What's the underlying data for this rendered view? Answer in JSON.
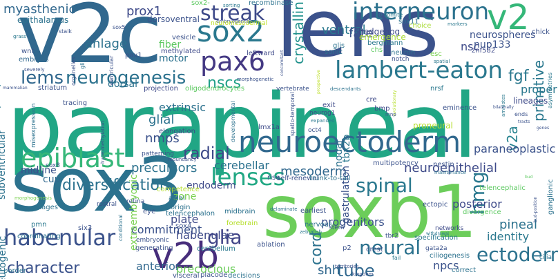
{
  "words": [
    {
      "text": "parapineal",
      "color": "#21a685",
      "vertical": false
    },
    {
      "text": "sox3",
      "color": "#2c728e",
      "vertical": false
    },
    {
      "text": "soxb1",
      "color": "#6ccd5a",
      "vertical": false
    },
    {
      "text": "v2c",
      "color": "#31688e",
      "vertical": false
    },
    {
      "text": "lens",
      "color": "#3b528b",
      "vertical": false
    },
    {
      "text": "neuroectoderm",
      "color": "#31688e",
      "vertical": false
    },
    {
      "text": "pax6",
      "color": "#443983",
      "vertical": false
    },
    {
      "text": "sox2",
      "color": "#2a788e",
      "vertical": false
    },
    {
      "text": "v2",
      "color": "#35b779",
      "vertical": false
    },
    {
      "text": "interneuron",
      "color": "#2c728e",
      "vertical": false
    },
    {
      "text": "epiblast",
      "color": "#35b779",
      "vertical": false
    },
    {
      "text": "lenses",
      "color": "#22a884",
      "vertical": false
    },
    {
      "text": "lambert-eaton",
      "color": "#2a788e",
      "vertical": false
    },
    {
      "text": "streak",
      "color": "#3e4a89",
      "vertical": false
    },
    {
      "text": "v2b",
      "color": "#472d7b",
      "vertical": false
    },
    {
      "text": "habenular",
      "color": "#3b528b",
      "vertical": false
    },
    {
      "text": "neurogenesis",
      "color": "#2c728e",
      "vertical": false
    },
    {
      "text": "lems",
      "color": "#31688e",
      "vertical": false
    },
    {
      "text": "glia",
      "color": "#414487",
      "vertical": false
    },
    {
      "text": "spinal",
      "color": "#2a788e",
      "vertical": false
    },
    {
      "text": "ectoderm",
      "color": "#2c728e",
      "vertical": false
    },
    {
      "text": "hmg",
      "color": "#2a788e",
      "vertical": true
    },
    {
      "text": "neural",
      "color": "#2c728e",
      "vertical": false
    },
    {
      "text": "nscs",
      "color": "#1fa088",
      "vertical": false
    },
    {
      "text": "radial",
      "color": "#3e4a89",
      "vertical": false
    },
    {
      "text": "character",
      "color": "#3b528b",
      "vertical": false
    },
    {
      "text": "diversification",
      "color": "#2c728e",
      "vertical": false
    },
    {
      "text": "cord",
      "color": "#2c728e",
      "vertical": true
    },
    {
      "text": "tube",
      "color": "#31688e",
      "vertical": false
    },
    {
      "text": "fgf",
      "color": "#2a788e",
      "vertical": false
    },
    {
      "text": "crystallin",
      "color": "#21918c",
      "vertical": true
    },
    {
      "text": "primitive",
      "color": "#2a788e",
      "vertical": true
    },
    {
      "text": "v2a",
      "color": "#26828e",
      "vertical": true
    },
    {
      "text": "myasthenic",
      "color": "#31688e",
      "vertical": false
    },
    {
      "text": "ventral",
      "color": "#2a788e",
      "vertical": false
    },
    {
      "text": "prox1",
      "color": "#3e4a89",
      "vertical": false
    },
    {
      "text": "fate",
      "color": "#3b528b",
      "vertical": false
    },
    {
      "text": "anlage",
      "color": "#2c728e",
      "vertical": false
    },
    {
      "text": "mesoderm",
      "color": "#31688e",
      "vertical": false
    },
    {
      "text": "nmps",
      "color": "#3b528b",
      "vertical": false
    },
    {
      "text": "neuroepithelial",
      "color": "#3e4a89",
      "vertical": false
    },
    {
      "text": "paraneoplastic",
      "color": "#3b528b",
      "vertical": false
    },
    {
      "text": "pineal",
      "color": "#2c728e",
      "vertical": false
    },
    {
      "text": "identity",
      "color": "#2a788e",
      "vertical": false
    },
    {
      "text": "shh",
      "color": "#31688e",
      "vertical": false
    },
    {
      "text": "precursors",
      "color": "#2c728e",
      "vertical": false
    },
    {
      "text": "cerebellar",
      "color": "#2c728e",
      "vertical": false
    },
    {
      "text": "glial",
      "color": "#2c728e",
      "vertical": false
    },
    {
      "text": "extrinsic",
      "color": "#2c728e",
      "vertical": false
    },
    {
      "text": "habenulae",
      "color": "#3e4a89",
      "vertical": false
    },
    {
      "text": "commitment",
      "color": "#3b528b",
      "vertical": false
    },
    {
      "text": "plate",
      "color": "#3e4a89",
      "vertical": false
    },
    {
      "text": "progenitors",
      "color": "#3b528b",
      "vertical": false
    },
    {
      "text": "posterior",
      "color": "#3e4a89",
      "vertical": false
    },
    {
      "text": "proper",
      "color": "#2a788e",
      "vertical": false
    },
    {
      "text": "nsc",
      "color": "#3e4a89",
      "vertical": false
    },
    {
      "text": "neurospheres",
      "color": "#3b528b",
      "vertical": false
    },
    {
      "text": "nup133",
      "color": "#3b528b",
      "vertical": false
    },
    {
      "text": "pluripotent",
      "color": "#2a788e",
      "vertical": true
    },
    {
      "text": "epithalamus",
      "color": "#2c728e",
      "vertical": false
    },
    {
      "text": "precocious",
      "color": "#6ccd5a",
      "vertical": false
    },
    {
      "text": "npcs",
      "color": "#3b528b",
      "vertical": false
    },
    {
      "text": "anterior",
      "color": "#31688e",
      "vertical": false
    },
    {
      "text": "endoderm",
      "color": "#3e4a89",
      "vertical": false
    },
    {
      "text": "midline",
      "color": "#3b528b",
      "vertical": false
    },
    {
      "text": "subventricular",
      "color": "#2c728e",
      "vertical": true
    },
    {
      "text": "neurogenic",
      "color": "#2c728e",
      "vertical": true
    },
    {
      "text": "gastrulation",
      "color": "#3b528b",
      "vertical": true
    },
    {
      "text": "tbx2b",
      "color": "#2a788e",
      "vertical": true
    },
    {
      "text": "nodal",
      "color": "#2c728e",
      "vertical": true
    },
    {
      "text": "dorsoventral",
      "color": "#3b528b",
      "vertical": false
    },
    {
      "text": "fiber",
      "color": "#5ec962",
      "vertical": false
    },
    {
      "text": "motor",
      "color": "#2c728e",
      "vertical": false
    },
    {
      "text": "zone",
      "color": "#7ad151",
      "vertical": false
    },
    {
      "text": "cup",
      "color": "#31688e",
      "vertical": false
    },
    {
      "text": "dorsal",
      "color": "#2c728e",
      "vertical": false
    },
    {
      "text": "extraembryonic",
      "color": "#7ad151",
      "vertical": true
    },
    {
      "text": "lineages",
      "color": "#3e4a89",
      "vertical": false
    },
    {
      "text": "elongation",
      "color": "#3e4a89",
      "vertical": false
    },
    {
      "text": "sox2-",
      "color": "#5ec962",
      "vertical": false
    },
    {
      "text": "recombinase",
      "color": "#2c728e",
      "vertical": false
    },
    {
      "text": "embryogenesis",
      "color": "#3b528b",
      "vertical": false
    },
    {
      "text": "neuromesodermal",
      "color": "#bddf26",
      "vertical": false
    },
    {
      "text": "sox11",
      "color": "#2c728e",
      "vertical": false
    },
    {
      "text": "sorting",
      "color": "#2a788e",
      "vertical": false
    },
    {
      "text": "10-somite",
      "color": "#2a788e",
      "vertical": false
    },
    {
      "text": "choice",
      "color": "#a8db34",
      "vertical": false
    },
    {
      "text": "layer",
      "color": "#3b528b",
      "vertical": false
    },
    {
      "text": "hedgehog",
      "color": "#3e4a89",
      "vertical": false
    },
    {
      "text": "emergence",
      "color": "#a8db34",
      "vertical": false
    },
    {
      "text": "bergmann",
      "color": "#2a788e",
      "vertical": false
    },
    {
      "text": "markers",
      "color": "#2a788e",
      "vertical": false
    },
    {
      "text": "chick",
      "color": "#3b528b",
      "vertical": false
    },
    {
      "text": "stalk",
      "color": "#3b528b",
      "vertical": false
    },
    {
      "text": "sox5",
      "color": "#3b528b",
      "vertical": false
    },
    {
      "text": "vesicle",
      "color": "#3b528b",
      "vertical": false
    },
    {
      "text": "methylated",
      "color": "#3e4a89",
      "vertical": false
    },
    {
      "text": "leftward",
      "color": "#3e4a89",
      "vertical": false
    },
    {
      "text": "sonic",
      "color": "#2c728e",
      "vertical": false
    },
    {
      "text": "glis",
      "color": "#2c728e",
      "vertical": false
    },
    {
      "text": "neuron",
      "color": "#2c728e",
      "vertical": false
    },
    {
      "text": "notch",
      "color": "#3b528b",
      "vertical": false
    },
    {
      "text": "chs",
      "color": "#5ec962",
      "vertical": false
    },
    {
      "text": "esc",
      "color": "#7ad151",
      "vertical": false
    },
    {
      "text": "znf582",
      "color": "#3e4a89",
      "vertical": false
    },
    {
      "text": "spatial",
      "color": "#2a788e",
      "vertical": false
    },
    {
      "text": "wnt",
      "color": "#3b528b",
      "vertical": false
    },
    {
      "text": "embryos",
      "color": "#31688e",
      "vertical": false
    },
    {
      "text": "organelles",
      "color": "#3b528b",
      "vertical": true
    },
    {
      "text": "gli2",
      "color": "#2c728e",
      "vertical": true
    },
    {
      "text": "pax1",
      "color": "#3b528b",
      "vertical": false
    },
    {
      "text": "ventricular",
      "color": "#3b528b",
      "vertical": true
    },
    {
      "text": "severely",
      "color": "#3b528b",
      "vertical": false
    },
    {
      "text": "grass",
      "color": "#2a788e",
      "vertical": false
    },
    {
      "text": "mammalian",
      "color": "#3b528b",
      "vertical": false
    },
    {
      "text": "striatum",
      "color": "#3b528b",
      "vertical": false
    },
    {
      "text": "projection",
      "color": "#3e4a89",
      "vertical": false
    },
    {
      "text": "oligodendrocytes",
      "color": "#5ec962",
      "vertical": false
    },
    {
      "text": "morphogenetic",
      "color": "#3b528b",
      "vertical": false
    },
    {
      "text": "vertebrate",
      "color": "#3b528b",
      "vertical": false
    },
    {
      "text": "descendants",
      "color": "#2c728e",
      "vertical": false
    },
    {
      "text": "nrsf",
      "color": "#2a788e",
      "vertical": false
    },
    {
      "text": "cre",
      "color": "#3e4a89",
      "vertical": false
    },
    {
      "text": "bmp",
      "color": "#3e4a89",
      "vertical": false
    },
    {
      "text": "exit",
      "color": "#3e4a89",
      "vertical": false
    },
    {
      "text": "lmx1a",
      "color": "#3e4a89",
      "vertical": false
    },
    {
      "text": "oct4",
      "color": "#3b528b",
      "vertical": false
    },
    {
      "text": "neurog1",
      "color": "#3e4a89",
      "vertical": false
    },
    {
      "text": "eminence",
      "color": "#3b528b",
      "vertical": false
    },
    {
      "text": "proneural",
      "color": "#b5de2b",
      "vertical": false
    },
    {
      "text": "developmental",
      "color": "#2c728e",
      "vertical": true
    },
    {
      "text": "spatio-temporal",
      "color": "#3b528b",
      "vertical": true
    },
    {
      "text": "concomitant",
      "color": "#3b528b",
      "vertical": true
    },
    {
      "text": "tracing",
      "color": "#3b528b",
      "vertical": false
    },
    {
      "text": "misexpression",
      "color": "#2c728e",
      "vertical": true
    },
    {
      "text": "hypermethylation",
      "color": "#3b528b",
      "vertical": true
    },
    {
      "text": "asymmetries",
      "color": "#2a788e",
      "vertical": true
    },
    {
      "text": "amniotes",
      "color": "#2a788e",
      "vertical": true
    },
    {
      "text": "expanded",
      "color": "#2a788e",
      "vertical": false
    },
    {
      "text": "multipotency",
      "color": "#3b528b",
      "vertical": false
    },
    {
      "text": "nestin",
      "color": "#3b528b",
      "vertical": false
    },
    {
      "text": "maintenance",
      "color": "#2c728e",
      "vertical": false
    },
    {
      "text": "patterning",
      "color": "#3b528b",
      "vertical": false
    },
    {
      "text": "redundancy",
      "color": "#3b528b",
      "vertical": false
    },
    {
      "text": "sox8",
      "color": "#3b528b",
      "vertical": false
    },
    {
      "text": "morphogenesis",
      "color": "#7ad151",
      "vertical": false
    },
    {
      "text": "stages",
      "color": "#2c728e",
      "vertical": false
    },
    {
      "text": "competence",
      "color": "#b5de2b",
      "vertical": false
    },
    {
      "text": "axial",
      "color": "#2c728e",
      "vertical": false
    },
    {
      "text": "origin",
      "color": "#2c728e",
      "vertical": false
    },
    {
      "text": "telencephalon",
      "color": "#2c728e",
      "vertical": false
    },
    {
      "text": "sox4",
      "color": "#3b528b",
      "vertical": false
    },
    {
      "text": "rostral",
      "color": "#3b528b",
      "vertical": false
    },
    {
      "text": "retina",
      "color": "#3b528b",
      "vertical": false
    },
    {
      "text": "eye",
      "color": "#3b528b",
      "vertical": false
    },
    {
      "text": "pmn",
      "color": "#2a788e",
      "vertical": false
    },
    {
      "text": "six3",
      "color": "#3b528b",
      "vertical": false
    },
    {
      "text": "coordinating",
      "color": "#2c728e",
      "vertical": false
    },
    {
      "text": "border",
      "color": "#2c728e",
      "vertical": false
    },
    {
      "text": "embryonic",
      "color": "#3b528b",
      "vertical": false
    },
    {
      "text": "generating",
      "color": "#3b528b",
      "vertical": false
    },
    {
      "text": "conditional",
      "color": "#2c728e",
      "vertical": true
    },
    {
      "text": "cerebellum",
      "color": "#2a788e",
      "vertical": false
    },
    {
      "text": "visceral",
      "color": "#3b528b",
      "vertical": false
    },
    {
      "text": "placode",
      "color": "#3b528b",
      "vertical": false
    },
    {
      "text": "decisions",
      "color": "#2c728e",
      "vertical": false
    },
    {
      "text": "ablation",
      "color": "#3b528b",
      "vertical": false
    },
    {
      "text": "self-renewal",
      "color": "#3b528b",
      "vertical": false
    },
    {
      "text": "trunk-to-tail",
      "color": "#2c728e",
      "vertical": false
    },
    {
      "text": "rise",
      "color": "#3b528b",
      "vertical": false
    },
    {
      "text": "midbrain",
      "color": "#2c728e",
      "vertical": false
    },
    {
      "text": "forebrain",
      "color": "#b5de2b",
      "vertical": false
    },
    {
      "text": "delaminate",
      "color": "#2c728e",
      "vertical": false
    },
    {
      "text": "earliest",
      "color": "#3b528b",
      "vertical": false
    },
    {
      "text": "nervous",
      "color": "#2c728e",
      "vertical": false
    },
    {
      "text": "zebrafish",
      "color": "#2a788e",
      "vertical": false
    },
    {
      "text": "stem",
      "color": "#3b528b",
      "vertical": false
    },
    {
      "text": "p2",
      "color": "#3b528b",
      "vertical": false
    },
    {
      "text": "crest",
      "color": "#3b528b",
      "vertical": false
    },
    {
      "text": "tbr2",
      "color": "#3b528b",
      "vertical": false
    },
    {
      "text": "specification",
      "color": "#2a788e",
      "vertical": false
    },
    {
      "text": "gata2a",
      "color": "#3b528b",
      "vertical": false
    },
    {
      "text": "ciliogenesis",
      "color": "#2c728e",
      "vertical": false
    },
    {
      "text": "divergence",
      "color": "#5ec962",
      "vertical": false
    },
    {
      "text": "fail",
      "color": "#2a788e",
      "vertical": false
    },
    {
      "text": "territories",
      "color": "#3b528b",
      "vertical": false
    },
    {
      "text": "kingdom",
      "color": "#3b528b",
      "vertical": false
    },
    {
      "text": "correct",
      "color": "#2c728e",
      "vertical": false
    },
    {
      "text": "cilia",
      "color": "#2c728e",
      "vertical": false
    },
    {
      "text": "ectopic",
      "color": "#3b528b",
      "vertical": false
    },
    {
      "text": "networks",
      "color": "#3e4a89",
      "vertical": false
    },
    {
      "text": "withdrawal",
      "color": "#2a788e",
      "vertical": false
    },
    {
      "text": "telencephalic",
      "color": "#5ec962",
      "vertical": false
    },
    {
      "text": "ganglionic",
      "color": "#2c728e",
      "vertical": true
    },
    {
      "text": "ends",
      "color": "#3b528b",
      "vertical": false
    },
    {
      "text": "evolutionary",
      "color": "#b5de2b",
      "vertical": true
    },
    {
      "text": "prospective",
      "color": "#bddf26",
      "vertical": true
    },
    {
      "text": "mnp",
      "color": "#3b528b",
      "vertical": false
    },
    {
      "text": "bilaterally",
      "color": "#3b528b",
      "vertical": false
    },
    {
      "text": "tracts",
      "color": "#3b528b",
      "vertical": false
    },
    {
      "text": "genes",
      "color": "#3b528b",
      "vertical": false
    },
    {
      "text": "bud",
      "color": "#5ec962",
      "vertical": false
    },
    {
      "text": "bud-position",
      "color": "#3b528b",
      "vertical": true
    }
  ]
}
